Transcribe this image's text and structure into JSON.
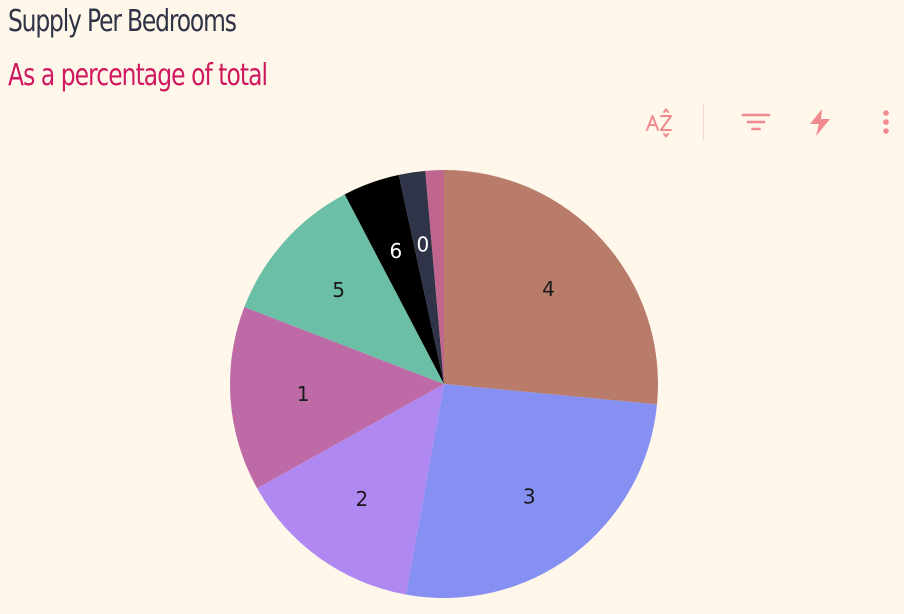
{
  "header": {
    "title": "Supply Per Bedrooms",
    "subtitle": "As a percentage of total"
  },
  "colors": {
    "title": "#2e3345",
    "subtitle": "#d0185f",
    "toolbar_icon": "#f08a8f",
    "background": "#fff7ea"
  },
  "toolbar": {
    "icons": [
      "sort-az-icon",
      "filter-icon",
      "lightning-icon",
      "more-vertical-icon"
    ]
  },
  "chart_data": {
    "type": "pie",
    "title": "Supply Per Bedrooms",
    "subtitle": "As a percentage of total",
    "slices": [
      {
        "label": "4",
        "value": 26.6,
        "color": "#b97c6a",
        "label_color": "#1a1a1a"
      },
      {
        "label": "3",
        "value": 26.4,
        "color": "#8690f2",
        "label_color": "#1a1a1a"
      },
      {
        "label": "2",
        "value": 14.1,
        "color": "#b088f2",
        "label_color": "#1a1a1a"
      },
      {
        "label": "1",
        "value": 14.0,
        "color": "#bd6aa7",
        "label_color": "#1a1a1a"
      },
      {
        "label": "5",
        "value": 11.5,
        "color": "#6bbfa6",
        "label_color": "#1a1a1a"
      },
      {
        "label": "6",
        "value": 4.3,
        "color": "#000000",
        "label_color": "#ffffff"
      },
      {
        "label": "0",
        "value": 2.0,
        "color": "#2f3448",
        "label_color": "#ffffff"
      },
      {
        "label": "",
        "value": 1.4,
        "color": "#c0668e",
        "label_color": "#ffffff"
      }
    ]
  }
}
